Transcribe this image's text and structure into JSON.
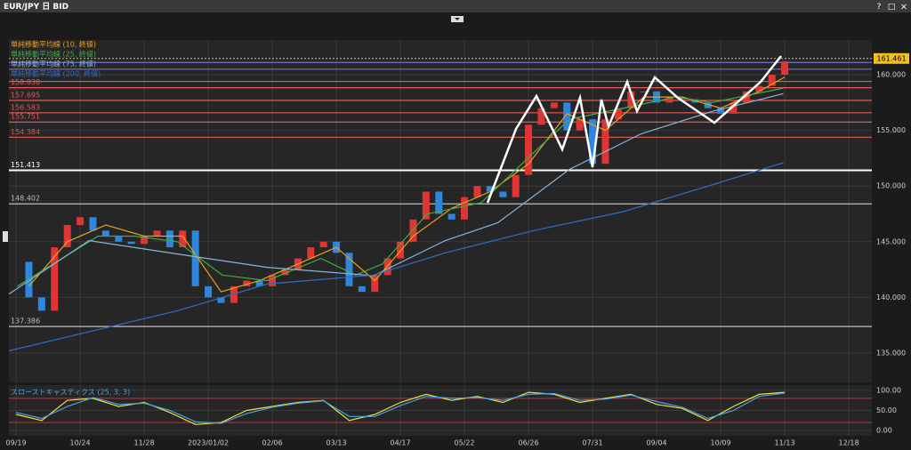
{
  "window_controls": [
    "?",
    "□",
    "×"
  ],
  "chart_data": [
    {
      "type": "candlestick",
      "title": "EUR/JPY 日 BID",
      "xlim": [
        -0.56,
        66.8
      ],
      "ylim": [
        132.36,
        163.12
      ],
      "yticks": [
        {
          "value": 135,
          "label": "135.000"
        },
        {
          "value": 140,
          "label": "140.000"
        },
        {
          "value": 145,
          "label": "145.000"
        },
        {
          "value": 150,
          "label": "150.000"
        },
        {
          "value": 155,
          "label": "155.000"
        },
        {
          "value": 160,
          "label": "160.000"
        }
      ],
      "grid": true,
      "current_price": 161.461,
      "up_color": "#e03535",
      "down_color": "#2e86de",
      "levels": [
        {
          "value": 161.1,
          "color": "#6f6fe0",
          "show_label": false
        },
        {
          "value": 160.5,
          "color": "#6f6fe0",
          "show_label": false
        },
        {
          "value": 159.4,
          "color": "#e05a5a",
          "show_label": false
        },
        {
          "value": 158.838,
          "color": "#e05a5a"
        },
        {
          "value": 157.695,
          "color": "#e05a5a"
        },
        {
          "value": 156.583,
          "color": "#e05a5a"
        },
        {
          "value": 155.751,
          "color": "#e05a5a"
        },
        {
          "value": 154.384,
          "color": "#c85a4a"
        },
        {
          "value": 151.413,
          "color": "#ffffff"
        },
        {
          "value": 148.402,
          "color": "#bdbdbd"
        },
        {
          "value": 137.386,
          "color": "#bdbdbd"
        }
      ],
      "series": [
        {
          "role": "candles",
          "x": [
            0,
            1,
            2,
            3,
            4,
            5,
            6,
            7,
            8,
            9,
            10,
            11,
            12,
            13,
            14,
            15,
            16,
            17,
            18,
            19,
            20,
            21,
            22,
            23,
            24,
            25,
            26,
            27,
            28,
            29,
            30,
            31,
            32,
            33,
            34,
            35,
            36,
            37,
            38,
            39,
            40,
            41,
            42,
            43,
            44,
            45,
            46,
            47,
            48,
            49,
            50,
            51,
            52,
            53,
            54,
            55,
            56,
            57,
            58,
            59,
            60
          ],
          "values": [
            143.2,
            140,
            138.8,
            144.5,
            146.5,
            147.2,
            146,
            145.5,
            145,
            144.8,
            145.5,
            146,
            144.5,
            146,
            141,
            140,
            139.5,
            141,
            141.5,
            141,
            142,
            142.5,
            143.5,
            144.5,
            145,
            144,
            141,
            140.5,
            142,
            143.5,
            145,
            147,
            149.5,
            147.5,
            147,
            149,
            150,
            149.5,
            149,
            151,
            155.5,
            157,
            157.5,
            155,
            156,
            152,
            156,
            157,
            158.5,
            158.5,
            157.5,
            158,
            157.8,
            157.5,
            157,
            156.5,
            157.5,
            158.5,
            159,
            160,
            161.2
          ]
        },
        {
          "name": "単純移動平均線 (10, 終値)",
          "color": "#e8a020",
          "x": [
            1,
            4,
            7,
            10,
            13,
            16,
            19,
            22,
            25,
            28,
            31,
            34,
            37,
            40,
            43,
            46,
            49,
            52,
            55,
            58,
            60
          ],
          "values": [
            141,
            145,
            146.5,
            145.5,
            145.5,
            140.5,
            141.5,
            143,
            144.5,
            141.5,
            145.5,
            148,
            149.5,
            152,
            156.5,
            155,
            158,
            158,
            157,
            158.5,
            159.8
          ]
        },
        {
          "name": "単純移動平均線 (25, 終値)",
          "color": "#3cb043",
          "x": [
            0.1,
            6.4,
            9.2,
            12.6,
            16.1,
            19.6,
            23.8,
            26.5,
            28.6,
            32.1,
            36.3,
            40.4,
            43.2,
            47.4,
            51.5,
            54.3,
            59.9
          ],
          "values": [
            141,
            145.5,
            145.5,
            145,
            142,
            141.5,
            143.5,
            142,
            143,
            147.5,
            148.5,
            153,
            156,
            157,
            158,
            157.5,
            158.8
          ]
        },
        {
          "name": "単純移動平均線 (75, 終値)",
          "color": "#8ab4d8",
          "x": [
            -0.56,
            5.7,
            12.6,
            19.6,
            27.9,
            33.5,
            37.6,
            43.2,
            48.8,
            54.3,
            59.9
          ],
          "values": [
            140.3,
            145.1,
            143.9,
            142.7,
            141.95,
            145.1,
            146.7,
            151.5,
            154.7,
            156.7,
            158.3
          ]
        },
        {
          "name": "単純移動平均線 (200, 終値)",
          "color": "#2f6fc0",
          "x": [
            -0.56,
            12.6,
            19.6,
            27.9,
            33.5,
            40.4,
            47.4,
            54.3,
            59.9
          ],
          "values": [
            135.2,
            138.8,
            141.2,
            142,
            144,
            146,
            147.7,
            150.1,
            152.1
          ]
        }
      ]
    },
    {
      "type": "line",
      "title": "スローストキャスティクス (25, 3, 3)",
      "xlim": [
        -0.56,
        66.8
      ],
      "ylim": [
        -13,
        113
      ],
      "xticks": [
        {
          "value": 0,
          "label": "09/19"
        },
        {
          "value": 5,
          "label": "10/24"
        },
        {
          "value": 10,
          "label": "11/28"
        },
        {
          "value": 15,
          "label": "2023/01/02"
        },
        {
          "value": 20,
          "label": "02/06"
        },
        {
          "value": 25,
          "label": "03/13"
        },
        {
          "value": 30,
          "label": "04/17"
        },
        {
          "value": 35,
          "label": "05/22"
        },
        {
          "value": 40,
          "label": "06/26"
        },
        {
          "value": 45,
          "label": "07/31"
        },
        {
          "value": 50,
          "label": "09/04"
        },
        {
          "value": 55,
          "label": "10/09"
        },
        {
          "value": 60,
          "label": "11/13"
        },
        {
          "value": 65,
          "label": "12/18"
        }
      ],
      "yticks": [
        {
          "value": 0,
          "label": "0.00"
        },
        {
          "value": 50,
          "label": "50.00"
        },
        {
          "value": 100,
          "label": "100.00"
        }
      ],
      "levels": [
        {
          "value": 80,
          "color": "#b03040"
        },
        {
          "value": 20,
          "color": "#b03040"
        }
      ],
      "series": [
        {
          "color": "#e8e040",
          "x": [
            0,
            2,
            4,
            6,
            8,
            10,
            12,
            14,
            16,
            18,
            20,
            22,
            24,
            26,
            28,
            30,
            32,
            34,
            36,
            38,
            40,
            42,
            44,
            46,
            48,
            50,
            52,
            54,
            56,
            58,
            60
          ],
          "values": [
            40,
            25,
            75,
            80,
            60,
            70,
            45,
            15,
            20,
            50,
            60,
            70,
            75,
            25,
            40,
            70,
            90,
            75,
            85,
            70,
            95,
            90,
            70,
            80,
            90,
            65,
            55,
            25,
            60,
            90,
            95
          ]
        },
        {
          "color": "#4aa0e0",
          "x": [
            0,
            2,
            4,
            6,
            8,
            10,
            12,
            14,
            16,
            18,
            20,
            22,
            24,
            26,
            28,
            30,
            32,
            34,
            36,
            38,
            40,
            42,
            44,
            46,
            48,
            50,
            52,
            54,
            56,
            58,
            60
          ],
          "values": [
            45,
            30,
            60,
            82,
            65,
            68,
            50,
            22,
            18,
            42,
            58,
            68,
            74,
            35,
            35,
            62,
            85,
            80,
            82,
            75,
            90,
            92,
            75,
            78,
            88,
            72,
            58,
            30,
            50,
            85,
            93
          ]
        }
      ]
    }
  ]
}
